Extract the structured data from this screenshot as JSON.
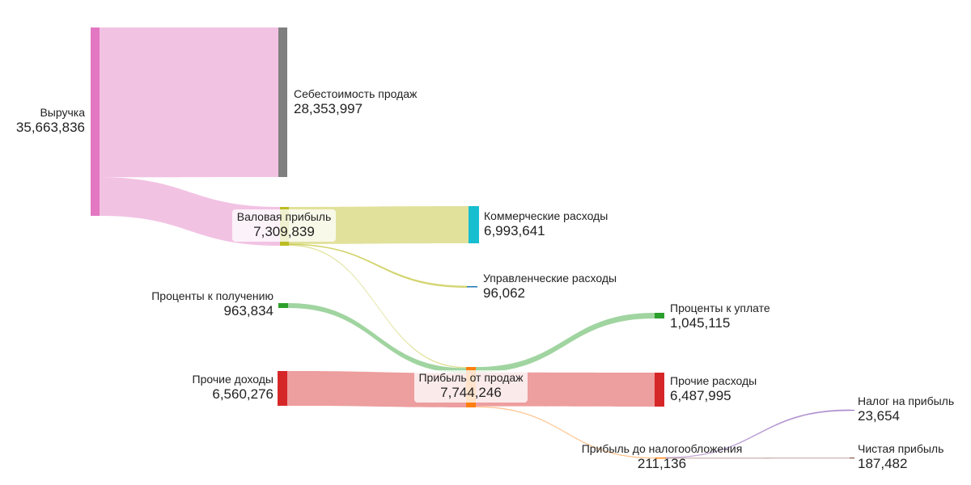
{
  "chart_data": {
    "type": "sankey",
    "title": "",
    "nodes": [
      {
        "id": "revenue",
        "label": "Выручка",
        "value": "35,663,836",
        "color": "#e377c2"
      },
      {
        "id": "cogs",
        "label": "Себестоимость продаж",
        "value": "28,353,997",
        "color": "#7f7f7f"
      },
      {
        "id": "gross",
        "label": "Валовая прибыль",
        "value": "7,309,839",
        "color": "#bcbd22"
      },
      {
        "id": "commercial",
        "label": "Коммерческие расходы",
        "value": "6,993,641",
        "color": "#17becf"
      },
      {
        "id": "admin",
        "label": "Управленческие расходы",
        "value": "96,062",
        "color": "#1f77b4"
      },
      {
        "id": "int_recv",
        "label": "Проценты к получению",
        "value": "963,834",
        "color": "#2ca02c"
      },
      {
        "id": "other_inc",
        "label": "Прочие доходы",
        "value": "6,560,276",
        "color": "#d62728"
      },
      {
        "id": "op_profit",
        "label": "Прибыль от продаж",
        "value": "7,744,246",
        "color": "#ff7f0e"
      },
      {
        "id": "int_pay",
        "label": "Проценты к уплате",
        "value": "1,045,115",
        "color": "#2ca02c"
      },
      {
        "id": "other_exp",
        "label": "Прочие расходы",
        "value": "6,487,995",
        "color": "#d62728"
      },
      {
        "id": "pretax",
        "label": "Прибыль до налогообложения",
        "value": "211,136",
        "color": "#ff7f0e"
      },
      {
        "id": "tax",
        "label": "Налог на прибыль",
        "value": "23,654",
        "color": "#9467bd"
      },
      {
        "id": "net",
        "label": "Чистая прибыль",
        "value": "187,482",
        "color": "#8c564b"
      }
    ],
    "links": [
      {
        "source": "revenue",
        "target": "cogs",
        "value": 28353997,
        "color": "#e377c2"
      },
      {
        "source": "revenue",
        "target": "gross",
        "value": 7309839,
        "color": "#e377c2"
      },
      {
        "source": "gross",
        "target": "commercial",
        "value": 6993641,
        "color": "#bcbd22"
      },
      {
        "source": "gross",
        "target": "admin",
        "value": 96062,
        "color": "#bcbd22"
      },
      {
        "source": "gross",
        "target": "op_profit",
        "value": 220136,
        "color": "#bcbd22"
      },
      {
        "source": "int_recv",
        "target": "op_profit",
        "value": 963834,
        "color": "#2ca02c"
      },
      {
        "source": "other_inc",
        "target": "op_profit",
        "value": 6560276,
        "color": "#d62728"
      },
      {
        "source": "op_profit",
        "target": "int_pay",
        "value": 1045115,
        "color": "#2ca02c"
      },
      {
        "source": "op_profit",
        "target": "other_exp",
        "value": 6487995,
        "color": "#d62728"
      },
      {
        "source": "op_profit",
        "target": "pretax",
        "value": 211136,
        "color": "#ff7f0e"
      },
      {
        "source": "pretax",
        "target": "tax",
        "value": 23654,
        "color": "#9467bd"
      },
      {
        "source": "pretax",
        "target": "net",
        "value": 187482,
        "color": "#8c564b"
      }
    ]
  }
}
